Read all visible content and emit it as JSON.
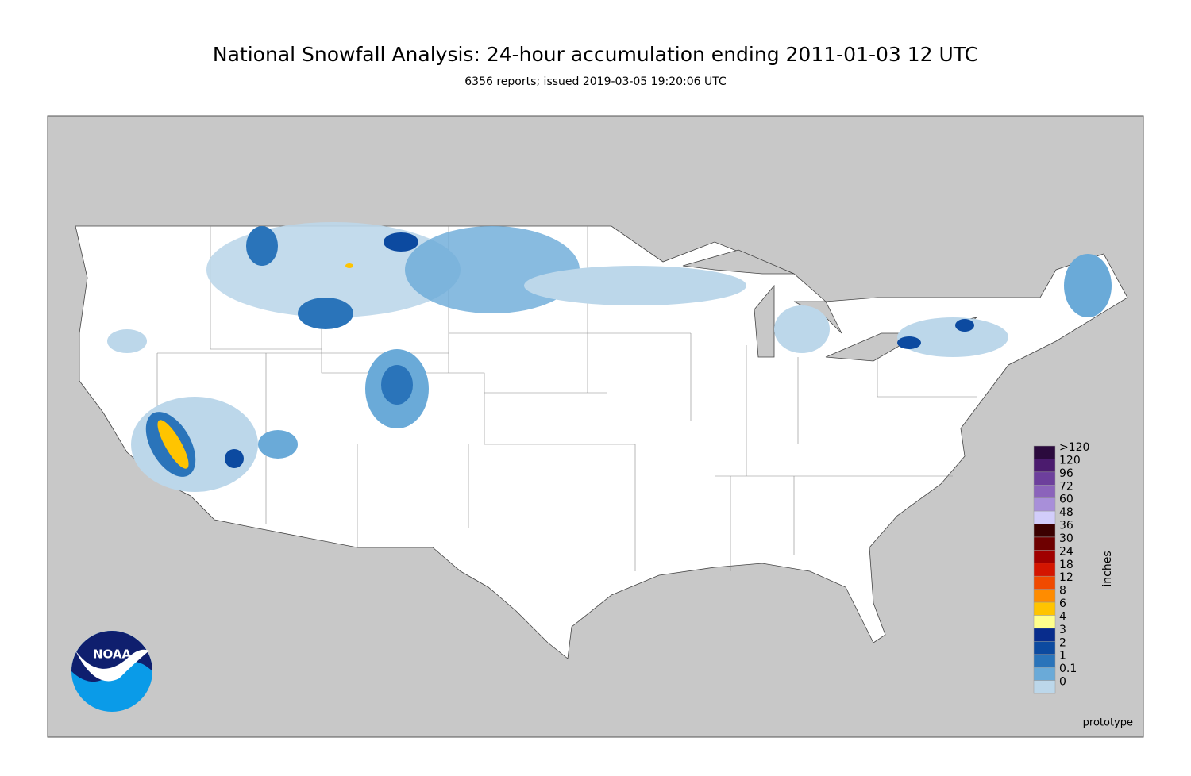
{
  "title": "National Snowfall Analysis: 24-hour accumulation ending 2011-01-03 12 UTC",
  "subtitle": "6356 reports; issued 2019-03-05 19:20:06 UTC",
  "legend": {
    "label": "inches",
    "items": [
      {
        "label": ">120",
        "color": "#2b0a3d"
      },
      {
        "label": "120",
        "color": "#4b1b6e"
      },
      {
        "label": "96",
        "color": "#6d3f9c"
      },
      {
        "label": "72",
        "color": "#8b63bb"
      },
      {
        "label": "60",
        "color": "#a88fd9"
      },
      {
        "label": "48",
        "color": "#d2cdfa"
      },
      {
        "label": "36",
        "color": "#3b0000"
      },
      {
        "label": "30",
        "color": "#6e0000"
      },
      {
        "label": "24",
        "color": "#a00000"
      },
      {
        "label": "18",
        "color": "#d41500"
      },
      {
        "label": "12",
        "color": "#f04a00"
      },
      {
        "label": "8",
        "color": "#ff8c00"
      },
      {
        "label": "6",
        "color": "#ffc400"
      },
      {
        "label": "4",
        "color": "#ffff8c"
      },
      {
        "label": "3",
        "color": "#082c8c"
      },
      {
        "label": "2",
        "color": "#0c4aa0"
      },
      {
        "label": "1",
        "color": "#2a74ba"
      },
      {
        "label": "0.1",
        "color": "#6aaad8"
      },
      {
        "label": "0",
        "color": "#bcd7ea"
      }
    ]
  },
  "logo": "NOAA",
  "note": "prototype"
}
